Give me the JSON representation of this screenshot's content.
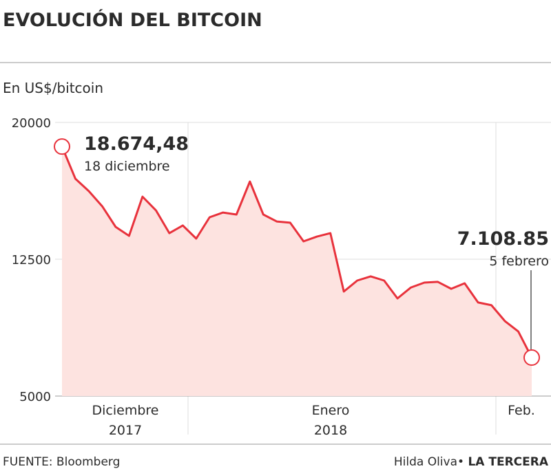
{
  "chart_data": {
    "type": "line",
    "title": "EVOLUCIÓN DEL BITCOIN",
    "subtitle": "En US$/bitcoin",
    "values": [
      18674.48,
      16910,
      16230,
      15400,
      14270,
      13780,
      15930,
      15180,
      13930,
      14350,
      13630,
      14800,
      15060,
      14950,
      16760,
      14950,
      14570,
      14500,
      13480,
      13740,
      13930,
      10730,
      11330,
      11560,
      11330,
      10350,
      10950,
      11220,
      11260,
      10880,
      11180,
      10130,
      9980,
      9110,
      8540,
      7108.85
    ],
    "color": "#e8323c",
    "area_color": "#fde3e0",
    "ylim": [
      5000,
      20000
    ],
    "yticks": [
      5000,
      12500,
      20000
    ],
    "grid": true,
    "x_labels": [
      {
        "month": "Diciembre",
        "year": "2017"
      },
      {
        "month": "Enero",
        "year": "2018"
      },
      {
        "month": "Feb."
      }
    ],
    "annotations": [
      {
        "label": "18.674,48",
        "text": "18 diciembre"
      },
      {
        "label": "7.108.85",
        "text": "5 febrero"
      }
    ],
    "source": "FUENTE: Bloomberg",
    "author": "Hilda Oliva•",
    "publisher": "LA TERCERA"
  }
}
